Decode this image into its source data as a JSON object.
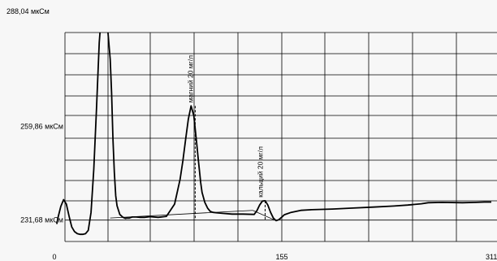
{
  "colors": {
    "background": "#f7f7f7",
    "grid": "#000000",
    "trace": "#000000"
  },
  "chart_data": {
    "type": "line",
    "title": "",
    "xlabel": "",
    "ylabel": "",
    "xlim": [
      0,
      311
    ],
    "ylim": [
      231.68,
      288.04
    ],
    "grid": true,
    "x_ticks": [
      {
        "value": 0,
        "label": "0"
      },
      {
        "value": 155,
        "label": "155"
      },
      {
        "value": 311,
        "label": "311"
      }
    ],
    "y_ticks": [
      {
        "value": 288.04,
        "label": "288,04 мкСм"
      },
      {
        "value": 259.86,
        "label": "259,86 мкСм"
      },
      {
        "value": 231.68,
        "label": "231,68 мкСм"
      }
    ],
    "series": [
      {
        "x": [
          -6,
          -5,
          -3,
          -1,
          1,
          3,
          5,
          7,
          9,
          11,
          13,
          15,
          17,
          19,
          21,
          23,
          25,
          27,
          29,
          31,
          33,
          34,
          35,
          36,
          37,
          38,
          40,
          41,
          42,
          43,
          44,
          45,
          47,
          49,
          52,
          55,
          58,
          62,
          68,
          74,
          80,
          84,
          86,
          88,
          90,
          92,
          94,
          95,
          96,
          97,
          98,
          99,
          100,
          102,
          104,
          106,
          108,
          110,
          115,
          122,
          130,
          138,
          140,
          142,
          144,
          146,
          148,
          150,
          152,
          154,
          156,
          158,
          160,
          165,
          172,
          180,
          195,
          210,
          225,
          240,
          250,
          260,
          265,
          275,
          290,
          300,
          306,
          311
        ],
        "y": [
          230.5,
          232.6,
          235.8,
          237.8,
          236.5,
          232.8,
          229.6,
          228.2,
          227.6,
          227.4,
          227.4,
          227.6,
          228.6,
          234,
          247,
          265,
          285,
          296,
          296,
          290,
          280,
          270,
          256,
          246,
          239,
          236,
          233.4,
          233.0,
          232.6,
          232.4,
          232.2,
          232.3,
          232.3,
          232.6,
          232.6,
          232.5,
          232.5,
          232.7,
          232.5,
          232.8,
          236.5,
          244,
          249.5,
          256,
          262,
          266,
          263,
          259,
          255,
          251,
          247,
          243,
          240,
          237,
          235.3,
          234.3,
          234.0,
          233.9,
          233.7,
          233.5,
          233.5,
          233.4,
          234.5,
          236.2,
          237.4,
          237.5,
          236.2,
          234.0,
          232.3,
          231.5,
          231.8,
          232.5,
          233.3,
          234.0,
          234.6,
          234.8,
          235.0,
          235.3,
          235.6,
          235.9,
          236.2,
          236.6,
          236.9,
          237.0,
          236.9,
          237.0,
          237.1,
          237.1
        ]
      }
    ],
    "annotations": [
      {
        "label": "магний 20 мг/л",
        "x": 95,
        "y": 266
      },
      {
        "label": "кальций 20 мг/л",
        "x": 146,
        "y": 237.5
      }
    ],
    "baselines": [
      {
        "x": [
          33,
          95
        ],
        "y": [
          232.3,
          233.7
        ]
      },
      {
        "x": [
          95,
          137
        ],
        "y": [
          233.7,
          234.6
        ]
      },
      {
        "x": [
          137,
          154
        ],
        "y": [
          234.6,
          231.5
        ]
      }
    ]
  }
}
